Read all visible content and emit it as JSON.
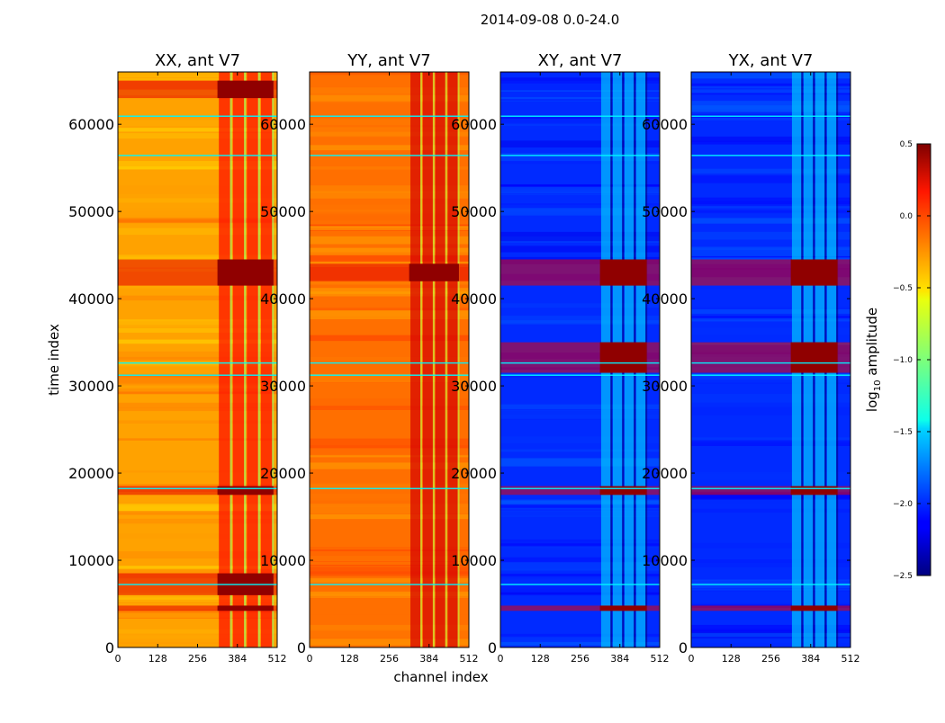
{
  "chart_data": {
    "type": "heatmap",
    "suptitle": "2014-09-08 0.0-24.0",
    "xlabel": "channel index",
    "ylabel": "time index",
    "xlim": [
      0,
      512
    ],
    "ylim": [
      0,
      66000
    ],
    "x_ticks": [
      "0",
      "128",
      "256",
      "384",
      "512"
    ],
    "y_ticks": [
      "0",
      "10000",
      "20000",
      "30000",
      "40000",
      "50000",
      "60000"
    ],
    "x_tick_values": [
      0,
      128,
      256,
      384,
      512
    ],
    "y_tick_values": [
      0,
      10000,
      20000,
      30000,
      40000,
      50000,
      60000
    ],
    "colormap": "jet",
    "colorbar": {
      "label_prefix": "log",
      "label_sub": "10",
      "label_suffix": " amplitude",
      "range": [
        -2.5,
        0.5
      ],
      "ticks": [
        "0.5",
        "0.0",
        "−0.5",
        "−1.0",
        "−1.5",
        "−2.0",
        "−2.5"
      ],
      "tick_values": [
        0.5,
        0.0,
        -0.5,
        -1.0,
        -1.5,
        -2.0,
        -2.5
      ]
    },
    "panels": [
      {
        "title": "XX, ant V7",
        "base_level": -0.35,
        "stripe_bands": [
          [
            320,
            500
          ]
        ],
        "edge_fade": [
          0,
          40
        ],
        "high_rows": [
          [
            41500,
            44500
          ],
          [
            17500,
            18500
          ],
          [
            4200,
            4800
          ],
          [
            63000,
            65000
          ],
          [
            6000,
            8500
          ]
        ],
        "high_level": 0.45
      },
      {
        "title": "YY, ant V7",
        "base_level": -0.2,
        "stripe_bands": [
          [
            320,
            480
          ]
        ],
        "edge_fade": [
          0,
          0
        ],
        "high_rows": [
          [
            42000,
            44000
          ]
        ],
        "high_level": 0.45
      },
      {
        "title": "XY, ant V7",
        "base_level": -2.0,
        "stripe_bands": [
          [
            320,
            470
          ]
        ],
        "edge_fade": [
          0,
          0
        ],
        "high_rows": [
          [
            41500,
            44500
          ],
          [
            31500,
            35000
          ],
          [
            17500,
            18500
          ],
          [
            4200,
            4800
          ]
        ],
        "high_level": 0.45
      },
      {
        "title": "YX, ant V7",
        "base_level": -2.0,
        "stripe_bands": [
          [
            320,
            470
          ]
        ],
        "edge_fade": [
          0,
          0
        ],
        "high_rows": [
          [
            41500,
            44500
          ],
          [
            31500,
            35000
          ],
          [
            17500,
            18500
          ],
          [
            4200,
            4800
          ]
        ],
        "high_level": 0.45
      }
    ]
  }
}
